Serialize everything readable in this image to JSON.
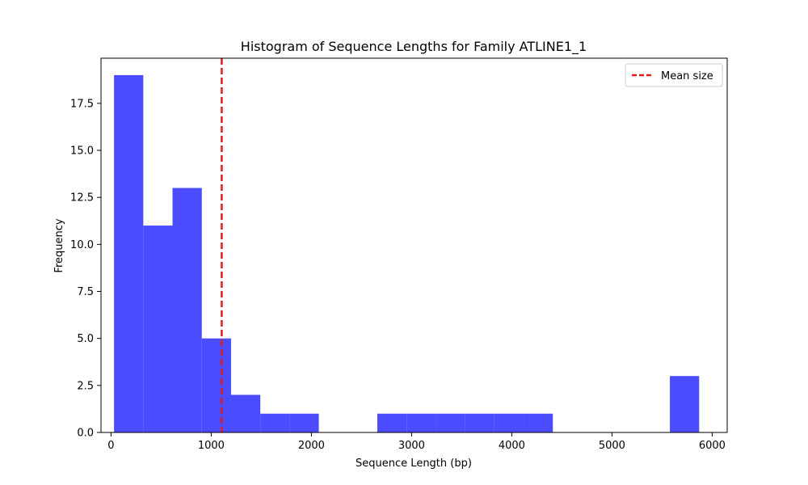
{
  "chart_data": {
    "type": "bar",
    "title": "Histogram of Sequence Lengths for Family ATLINE1_1",
    "xlabel": "Sequence Length (bp)",
    "ylabel": "Frequency",
    "xlim": [
      -100,
      6150
    ],
    "ylim": [
      0,
      19.9
    ],
    "xticks": [
      0,
      1000,
      2000,
      3000,
      4000,
      5000,
      6000
    ],
    "yticks": [
      0.0,
      2.5,
      5.0,
      7.5,
      10.0,
      12.5,
      15.0,
      17.5
    ],
    "bins": [
      {
        "start": 30,
        "end": 322,
        "count": 19
      },
      {
        "start": 322,
        "end": 614,
        "count": 11
      },
      {
        "start": 614,
        "end": 906,
        "count": 13
      },
      {
        "start": 906,
        "end": 1198,
        "count": 5
      },
      {
        "start": 1198,
        "end": 1490,
        "count": 2
      },
      {
        "start": 1490,
        "end": 1782,
        "count": 1
      },
      {
        "start": 1782,
        "end": 2074,
        "count": 1
      },
      {
        "start": 2074,
        "end": 2366,
        "count": 0
      },
      {
        "start": 2366,
        "end": 2658,
        "count": 0
      },
      {
        "start": 2658,
        "end": 2950,
        "count": 1
      },
      {
        "start": 2950,
        "end": 3242,
        "count": 1
      },
      {
        "start": 3242,
        "end": 3534,
        "count": 1
      },
      {
        "start": 3534,
        "end": 3826,
        "count": 1
      },
      {
        "start": 3826,
        "end": 4118,
        "count": 1
      },
      {
        "start": 4118,
        "end": 4410,
        "count": 1
      },
      {
        "start": 4410,
        "end": 4702,
        "count": 0
      },
      {
        "start": 4702,
        "end": 4994,
        "count": 0
      },
      {
        "start": 4994,
        "end": 5286,
        "count": 0
      },
      {
        "start": 5286,
        "end": 5578,
        "count": 0
      },
      {
        "start": 5578,
        "end": 5870,
        "count": 3
      }
    ],
    "bar_color": "#4b4bff",
    "mean_line": {
      "x": 1105,
      "label": "Mean size",
      "color": "#e31a1c",
      "style": "dashed"
    },
    "legend": {
      "position": "top-right",
      "entries": [
        "Mean size"
      ]
    },
    "grid": false
  }
}
